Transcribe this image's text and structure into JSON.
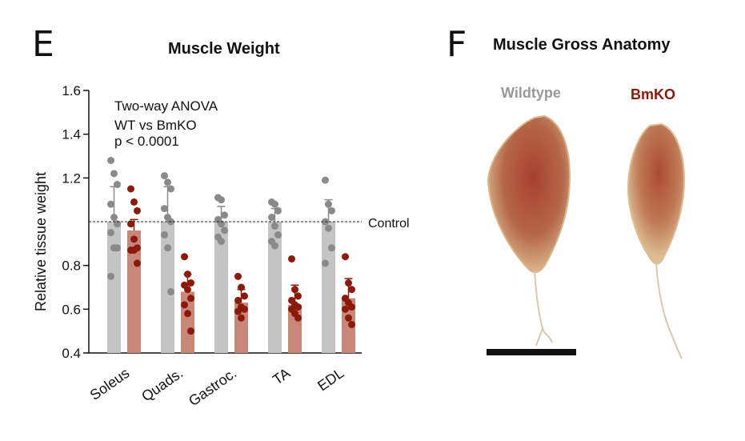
{
  "panel_e": {
    "letter": "E",
    "title": "Muscle Weight",
    "stats": [
      "Two-way ANOVA",
      "WT vs BmKO",
      "p < 0.0001"
    ],
    "control_label": "Control"
  },
  "panel_f": {
    "letter": "F",
    "title": "Muscle Gross Anatomy",
    "label_wt": "Wildtype",
    "label_ko": "BmKO"
  },
  "colors": {
    "wt_bar": "#c4c4c4",
    "wt_dot": "#8a8a8a",
    "ko_bar": "#c9877a",
    "ko_dot": "#8b1a0a",
    "wt_label": "#999999",
    "ko_label": "#8b1a0a",
    "muscle_body": "#a8402f",
    "muscle_edge": "#d9b58a"
  },
  "chart_data": {
    "type": "bar",
    "title": "Muscle Weight",
    "ylabel": "Relative tissue weight",
    "xlabel": "",
    "ylim": [
      0.4,
      1.6
    ],
    "yticks": [
      0.4,
      0.6,
      0.8,
      1.2,
      1.4,
      1.6
    ],
    "reference_line": {
      "value": 1.0,
      "label": "Control"
    },
    "categories": [
      "Soleus",
      "Quads.",
      "Gastroc.",
      "TA",
      "EDL"
    ],
    "series": [
      {
        "group": "WT",
        "values": [
          1.0,
          1.0,
          1.0,
          1.0,
          1.0
        ],
        "error": [
          0.16,
          0.16,
          0.07,
          0.06,
          0.1
        ],
        "points": [
          [
            1.28,
            1.22,
            1.17,
            1.08,
            1.02,
            0.99,
            0.95,
            0.88,
            0.88,
            0.75
          ],
          [
            1.21,
            1.18,
            1.15,
            1.06,
            1.02,
            1.0,
            0.94,
            0.88,
            0.68
          ],
          [
            1.11,
            1.1,
            1.03,
            1.01,
            0.99,
            0.96,
            0.93,
            0.91
          ],
          [
            1.09,
            1.08,
            1.05,
            1.02,
            0.98,
            0.94,
            0.91,
            0.89
          ],
          [
            1.19,
            1.08,
            1.05,
            1.0,
            0.97,
            0.88,
            0.81
          ]
        ]
      },
      {
        "group": "BmKO",
        "values": [
          0.96,
          0.68,
          0.63,
          0.62,
          0.65
        ],
        "error": [
          0.05,
          0.08,
          0.06,
          0.09,
          0.09
        ],
        "points": [
          [
            1.15,
            1.09,
            1.05,
            0.99,
            0.92,
            0.88,
            0.87,
            0.87,
            0.81
          ],
          [
            0.84,
            0.76,
            0.72,
            0.71,
            0.69,
            0.65,
            0.62,
            0.58,
            0.5
          ],
          [
            0.75,
            0.7,
            0.66,
            0.64,
            0.61,
            0.6,
            0.59,
            0.56
          ],
          [
            0.83,
            0.69,
            0.66,
            0.64,
            0.62,
            0.61,
            0.6,
            0.58,
            0.56
          ],
          [
            0.84,
            0.72,
            0.69,
            0.65,
            0.63,
            0.61,
            0.6,
            0.56,
            0.53
          ]
        ]
      }
    ]
  }
}
